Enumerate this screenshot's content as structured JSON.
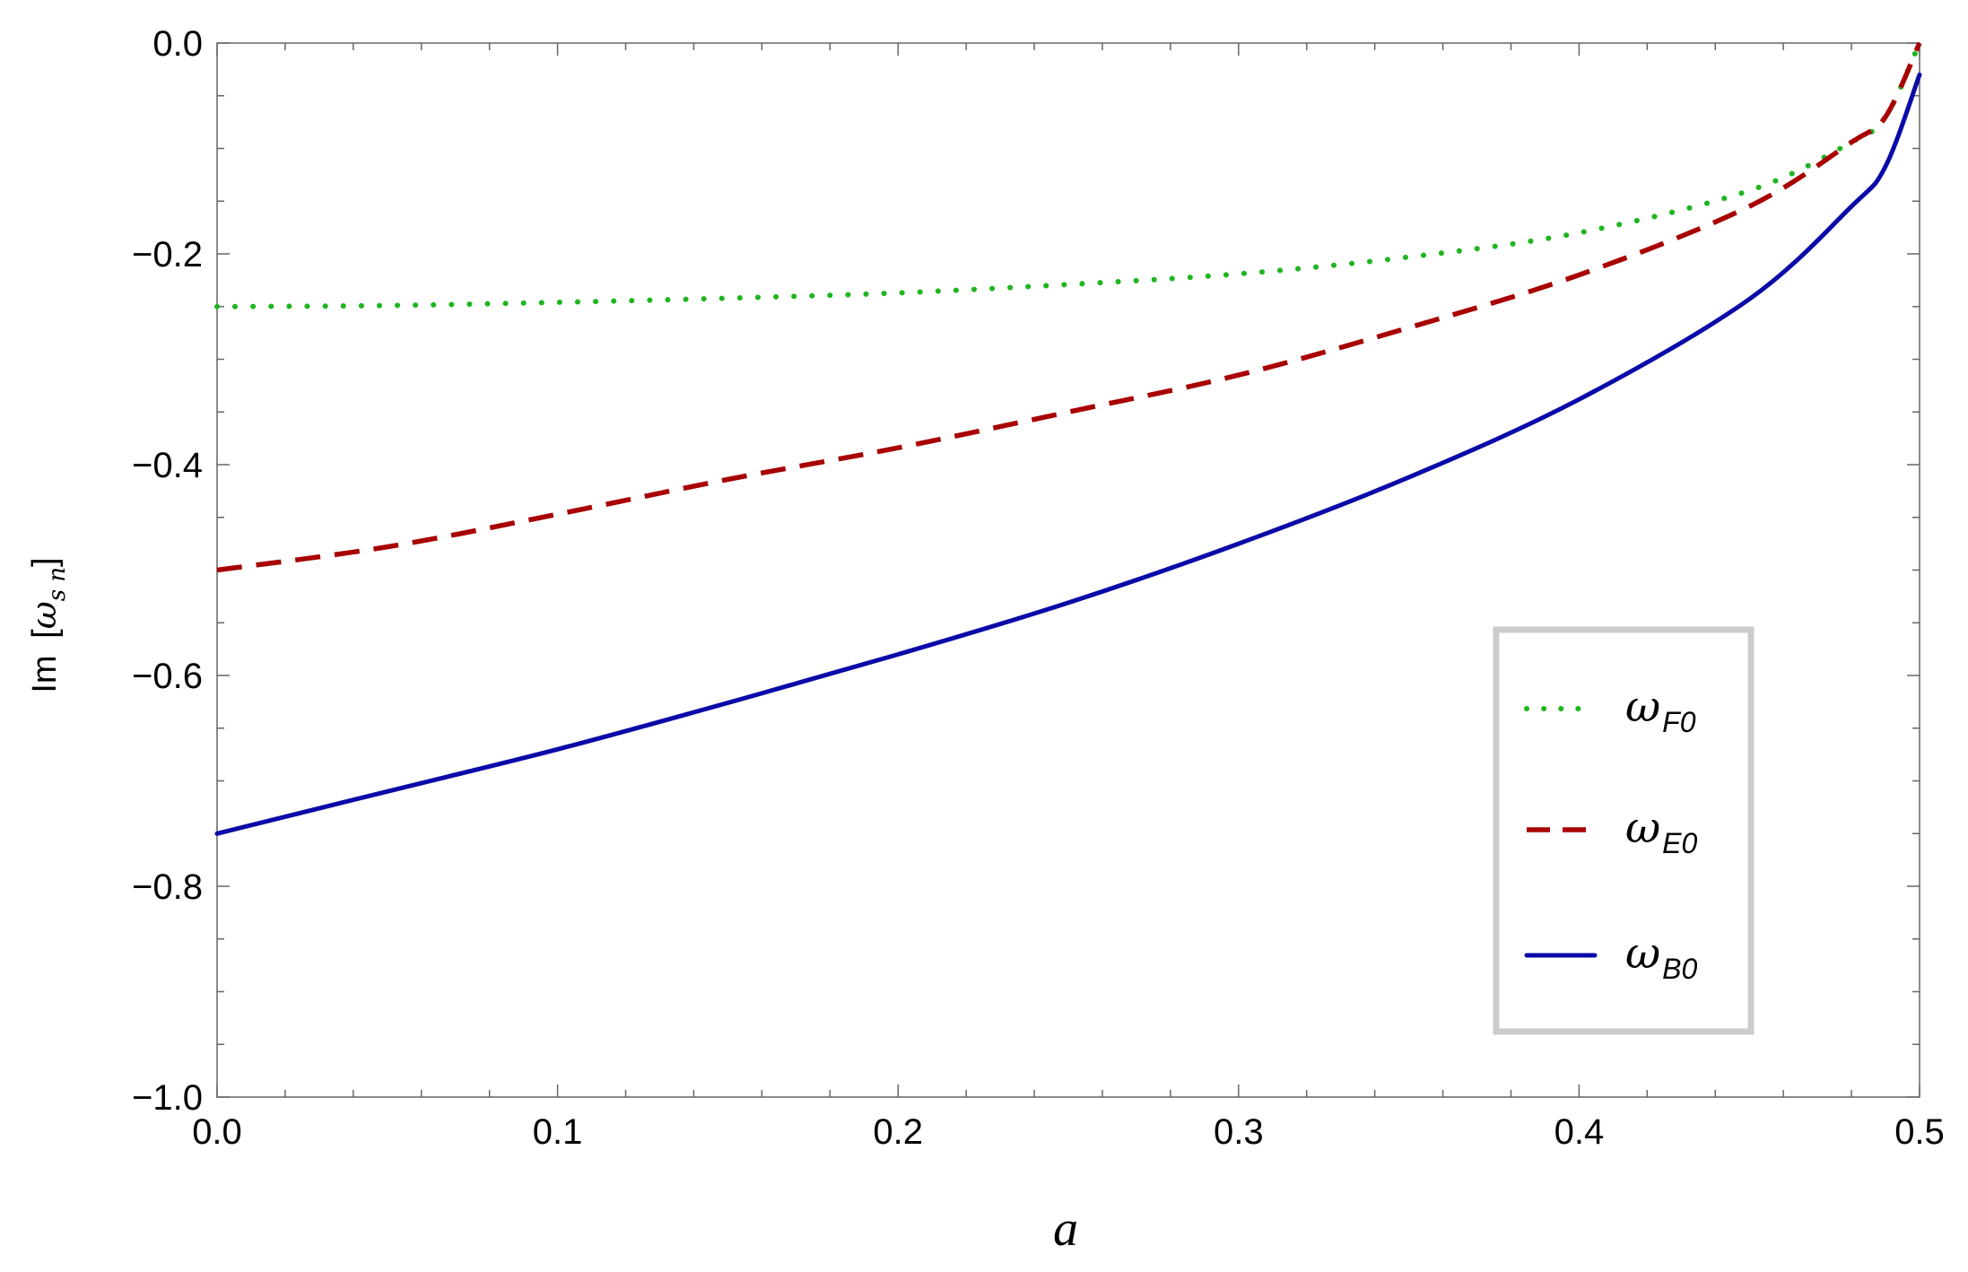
{
  "chart_data": {
    "type": "line",
    "xlabel": "a",
    "ylabel": {
      "prefix": "Im",
      "symbol": "ω",
      "subscript": "s n"
    },
    "xlim": [
      0,
      0.5
    ],
    "ylim": [
      -1.0,
      0.0
    ],
    "xticks": [
      0.0,
      0.1,
      0.2,
      0.3,
      0.4,
      0.5
    ],
    "xtick_labels": [
      "0.0",
      "0.1",
      "0.2",
      "0.3",
      "0.4",
      "0.5"
    ],
    "yticks": [
      0.0,
      -0.2,
      -0.4,
      -0.6,
      -0.8,
      -1.0
    ],
    "ytick_labels": [
      "0.0",
      "−0.2",
      "−0.4",
      "−0.6",
      "−0.8",
      "−1.0"
    ],
    "grid": false,
    "legend_position": "bottom-right",
    "series": [
      {
        "name": "ωF0",
        "symbol": "ω",
        "subscript": "F0",
        "style": "dotted",
        "color": "#1fb51f",
        "x": [
          0.0,
          0.05,
          0.1,
          0.15,
          0.2,
          0.25,
          0.3,
          0.35,
          0.4,
          0.45,
          0.48,
          0.49,
          0.5
        ],
        "y": [
          -0.25,
          -0.249,
          -0.246,
          -0.242,
          -0.237,
          -0.229,
          -0.219,
          -0.203,
          -0.18,
          -0.14,
          -0.094,
          -0.07,
          0.0
        ]
      },
      {
        "name": "ωE0",
        "symbol": "ω",
        "subscript": "E0",
        "style": "dashed",
        "color": "#a80000",
        "x": [
          0.0,
          0.05,
          0.1,
          0.15,
          0.2,
          0.25,
          0.3,
          0.35,
          0.4,
          0.45,
          0.48,
          0.49,
          0.5
        ],
        "y": [
          -0.5,
          -0.478,
          -0.447,
          -0.414,
          -0.384,
          -0.35,
          -0.315,
          -0.27,
          -0.22,
          -0.155,
          -0.094,
          -0.07,
          0.0
        ]
      },
      {
        "name": "ωB0",
        "symbol": "ω",
        "subscript": "B0",
        "style": "solid",
        "color": "#0a0aa8",
        "x": [
          0.0,
          0.05,
          0.1,
          0.15,
          0.2,
          0.25,
          0.3,
          0.35,
          0.4,
          0.45,
          0.48,
          0.49,
          0.5
        ],
        "y": [
          -0.75,
          -0.71,
          -0.67,
          -0.626,
          -0.58,
          -0.531,
          -0.475,
          -0.412,
          -0.338,
          -0.243,
          -0.155,
          -0.117,
          -0.03
        ]
      }
    ]
  }
}
